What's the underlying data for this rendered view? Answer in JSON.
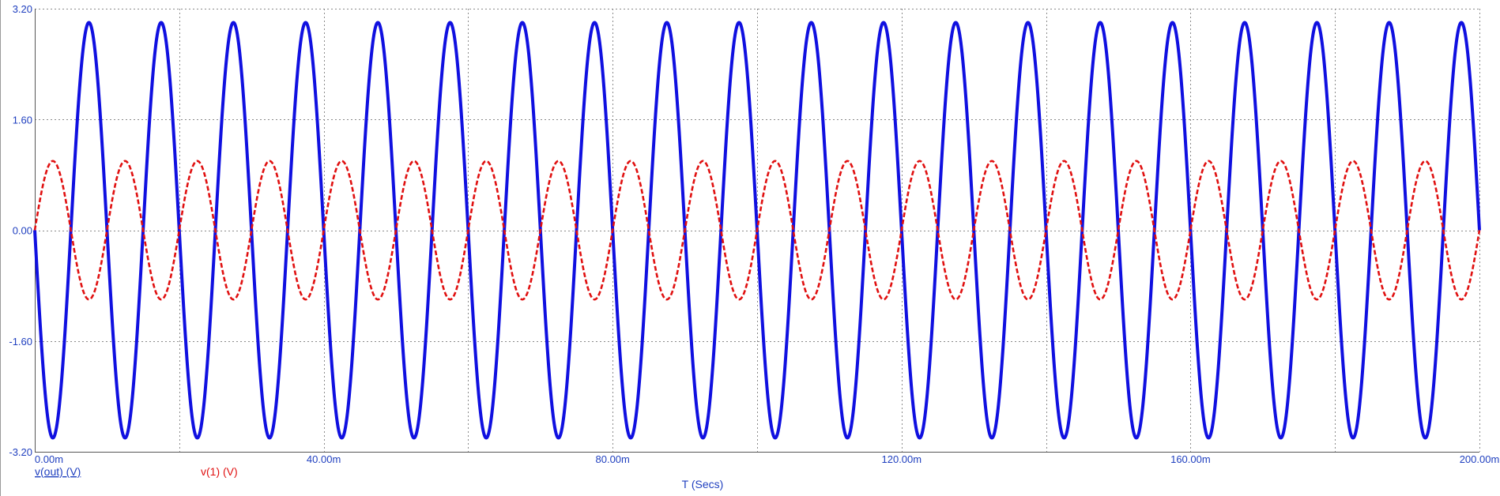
{
  "chart_data": {
    "type": "line",
    "xlabel": "T (Secs)",
    "ylabel": "",
    "xlim": [
      0,
      200
    ],
    "ylim": [
      -3.2,
      3.2
    ],
    "x_ticks": [
      {
        "value": 0,
        "label": "0.00m"
      },
      {
        "value": 40,
        "label": "40.00m"
      },
      {
        "value": 80,
        "label": "80.00m"
      },
      {
        "value": 120,
        "label": "120.00m"
      },
      {
        "value": 160,
        "label": "160.00m"
      },
      {
        "value": 200,
        "label": "200.00m"
      }
    ],
    "y_ticks": [
      {
        "value": 3.2,
        "label": "3.20"
      },
      {
        "value": 1.6,
        "label": "1.60"
      },
      {
        "value": 0,
        "label": "0.00"
      },
      {
        "value": -1.6,
        "label": "-1.60"
      },
      {
        "value": -3.2,
        "label": "-3.20"
      }
    ],
    "grid": true,
    "series": [
      {
        "name": "v(out) (V)",
        "color": "#1010e0",
        "style": "solid",
        "waveform": "sine",
        "amplitude": 3.0,
        "frequency_hz": 100,
        "phase": "inverted",
        "x_unit": "ms"
      },
      {
        "name": "v(1) (V)",
        "color": "#e01010",
        "style": "dashed",
        "waveform": "sine",
        "amplitude": 1.0,
        "frequency_hz": 100,
        "phase": "normal",
        "x_unit": "ms"
      }
    ]
  }
}
